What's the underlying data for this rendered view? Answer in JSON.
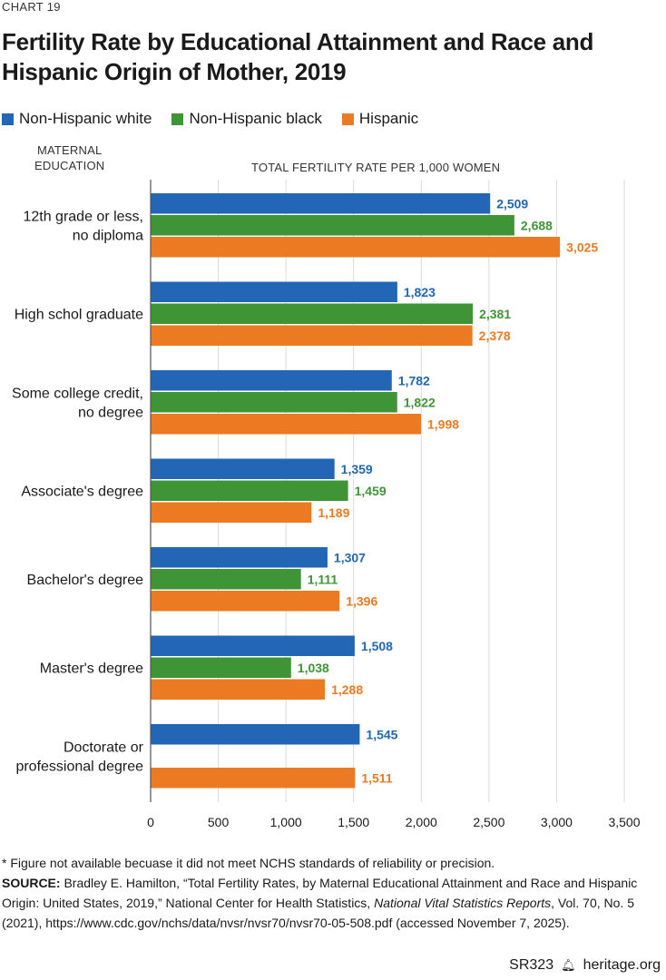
{
  "header": {
    "chart_label": "CHART 19",
    "title": "Fertility Rate by Educational Attainment and Race and Hispanic Origin of Mother, 2019"
  },
  "axis_titles": {
    "category_axis": [
      "MATERNAL",
      "EDUCATION"
    ],
    "value_axis": "TOTAL FERTILITY RATE PER 1,000 WOMEN"
  },
  "colors": {
    "white": "#2266b5",
    "black": "#3f9535",
    "hispanic": "#ec7a23",
    "grid": "#d9d9d9",
    "axis": "#555555"
  },
  "chart_data": {
    "type": "bar",
    "orientation": "horizontal",
    "title": "Fertility Rate by Educational Attainment and Race and Hispanic Origin of Mother, 2019",
    "xlabel": "TOTAL FERTILITY RATE PER 1,000 WOMEN",
    "ylabel": "MATERNAL EDUCATION",
    "xlim": [
      0,
      3500
    ],
    "xticks": [
      0,
      500,
      1000,
      1500,
      2000,
      2500,
      3000,
      3500
    ],
    "xtick_labels": [
      "0",
      "500",
      "1,000",
      "1,500",
      "2,000",
      "2,500",
      "3,000",
      "3,500"
    ],
    "categories": [
      [
        "12th grade or less,",
        "no diploma"
      ],
      [
        "High schol graduate"
      ],
      [
        "Some college credit,",
        "no degree"
      ],
      [
        "Associate's degree"
      ],
      [
        "Bachelor's degree"
      ],
      [
        "Master's degree"
      ],
      [
        "Doctorate or",
        "professional degree"
      ]
    ],
    "series": [
      {
        "name": "Non-Hispanic white",
        "key": "white",
        "values": [
          2509,
          1823,
          1782,
          1359,
          1307,
          1508,
          1545
        ],
        "labels": [
          "2,509",
          "1,823",
          "1,782",
          "1,359",
          "1,307",
          "1,508",
          "1,545"
        ]
      },
      {
        "name": "Non-Hispanic black",
        "key": "black",
        "values": [
          2688,
          2381,
          1822,
          1459,
          1111,
          1038,
          null
        ],
        "labels": [
          "2,688",
          "2,381",
          "1,822",
          "1,459",
          "1,111",
          "1,038",
          null
        ]
      },
      {
        "name": "Hispanic",
        "key": "hispanic",
        "values": [
          3025,
          2378,
          1998,
          1189,
          1396,
          1288,
          1511
        ],
        "labels": [
          "3,025",
          "2,378",
          "1,998",
          "1,189",
          "1,396",
          "1,288",
          "1,511"
        ]
      }
    ],
    "legend": "top-left"
  },
  "footnote": {
    "note": "* Figure not available becuase it did not meet NCHS standards of reliability or precision.",
    "source_label": "SOURCE:",
    "source_pre": " Bradley E. Hamilton, “Total Fertility Rates, by Maternal Educational Attainment and Race and Hispanic Origin: United States, 2019,” National Center for Health Statistics, ",
    "source_italic": "National Vital Statistics Reports",
    "source_post": ", Vol. 70, No. 5 (2021),  https://www.cdc.gov/nchs/data/nvsr/nvsr70/nvsr70-05-508.pdf (accessed November 7, 2025)."
  },
  "footer": {
    "report_id": "SR323",
    "site": "heritage.org"
  }
}
